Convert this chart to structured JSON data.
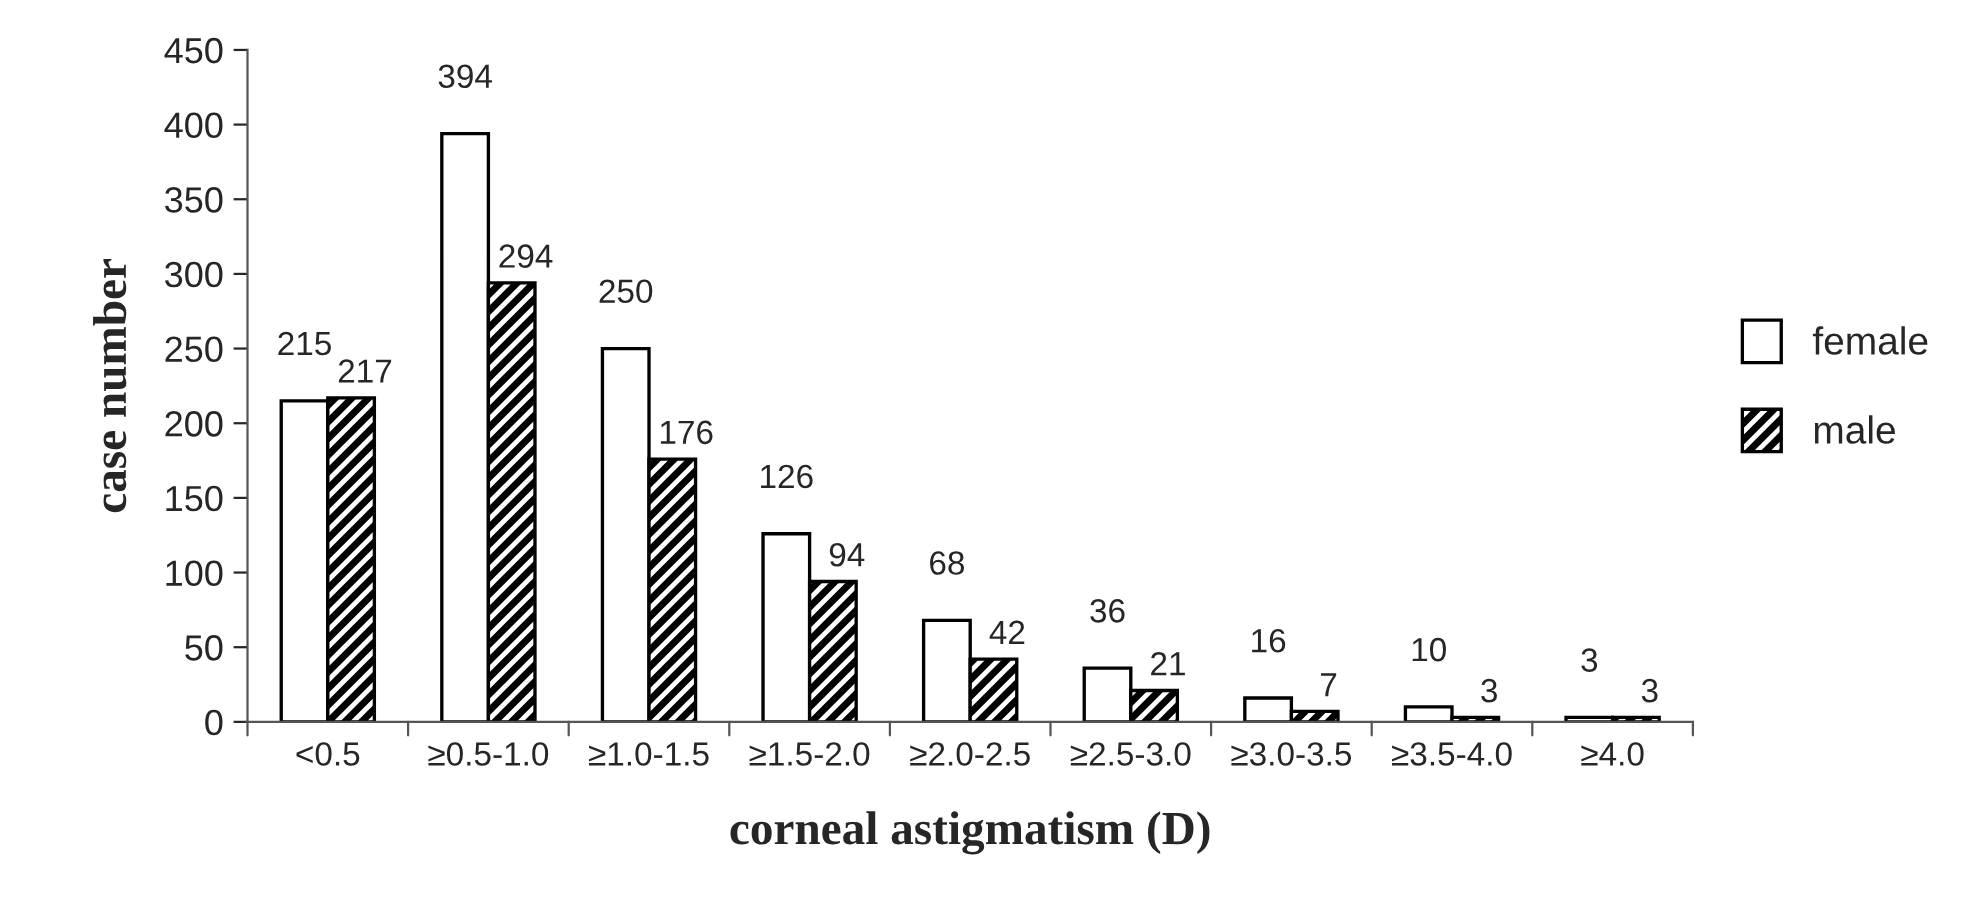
{
  "chart_data": {
    "type": "bar",
    "xlabel": "corneal astigmatism (D)",
    "ylabel": "case number",
    "categories": [
      "<0.5",
      "≥0.5-1.0",
      "≥1.0-1.5",
      "≥1.5-2.0",
      "≥2.0-2.5",
      "≥2.5-3.0",
      "≥3.0-3.5",
      "≥3.5-4.0",
      "≥4.0"
    ],
    "series": [
      {
        "name": "female",
        "color": "#ffffff",
        "values": [
          215,
          394,
          250,
          126,
          68,
          36,
          16,
          10,
          3
        ]
      },
      {
        "name": "male",
        "color": "#000000",
        "values": [
          217,
          294,
          176,
          94,
          42,
          21,
          7,
          3,
          3
        ]
      }
    ],
    "ylim": [
      0,
      450
    ],
    "yticks": [
      0,
      50,
      100,
      150,
      200,
      250,
      300,
      350,
      400,
      450
    ],
    "data_labels": true,
    "legend": "right",
    "grid": false
  }
}
